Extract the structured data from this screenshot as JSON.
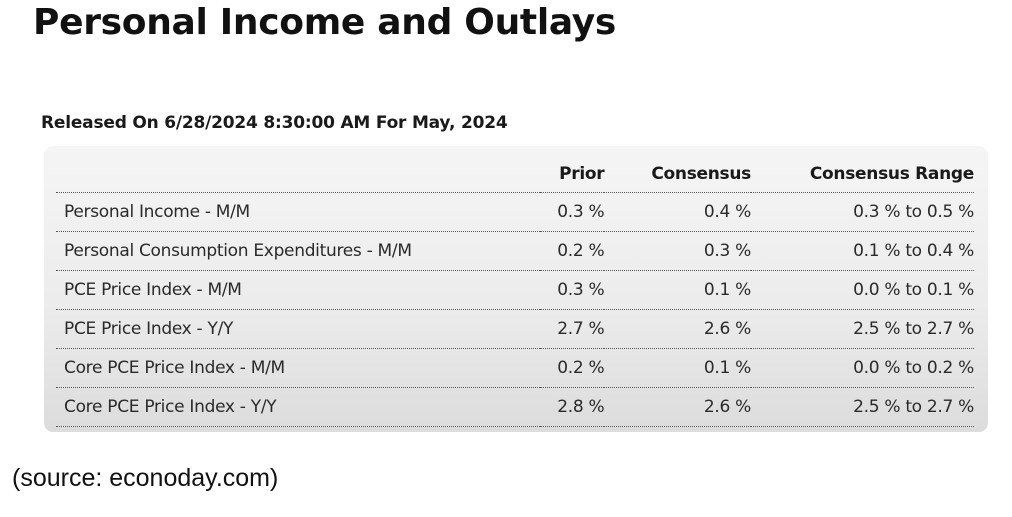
{
  "title": "Personal Income and Outlays",
  "release": "Released On 6/28/2024 8:30:00 AM For May, 2024",
  "table": {
    "columns": {
      "prior": "Prior",
      "consensus": "Consensus",
      "range": "Consensus Range"
    },
    "rows": [
      {
        "label": "Personal Income - M/M",
        "prior": "0.3 %",
        "consensus": "0.4 %",
        "range": "0.3 % to 0.5 %"
      },
      {
        "label": "Personal Consumption Expenditures - M/M",
        "prior": "0.2 %",
        "consensus": "0.3 %",
        "range": "0.1 % to 0.4 %"
      },
      {
        "label": "PCE Price Index - M/M",
        "prior": "0.3 %",
        "consensus": "0.1 %",
        "range": "0.0 % to 0.1 %"
      },
      {
        "label": "PCE Price Index - Y/Y",
        "prior": "2.7 %",
        "consensus": "2.6 %",
        "range": "2.5 % to 2.7 %"
      },
      {
        "label": "Core PCE Price Index - M/M",
        "prior": "0.2 %",
        "consensus": "0.1 %",
        "range": "0.0 % to 0.2 %"
      },
      {
        "label": "Core PCE Price Index - Y/Y",
        "prior": "2.8 %",
        "consensus": "2.6 %",
        "range": "2.5 % to 2.7 %"
      }
    ]
  },
  "source": "(source: econoday.com)"
}
